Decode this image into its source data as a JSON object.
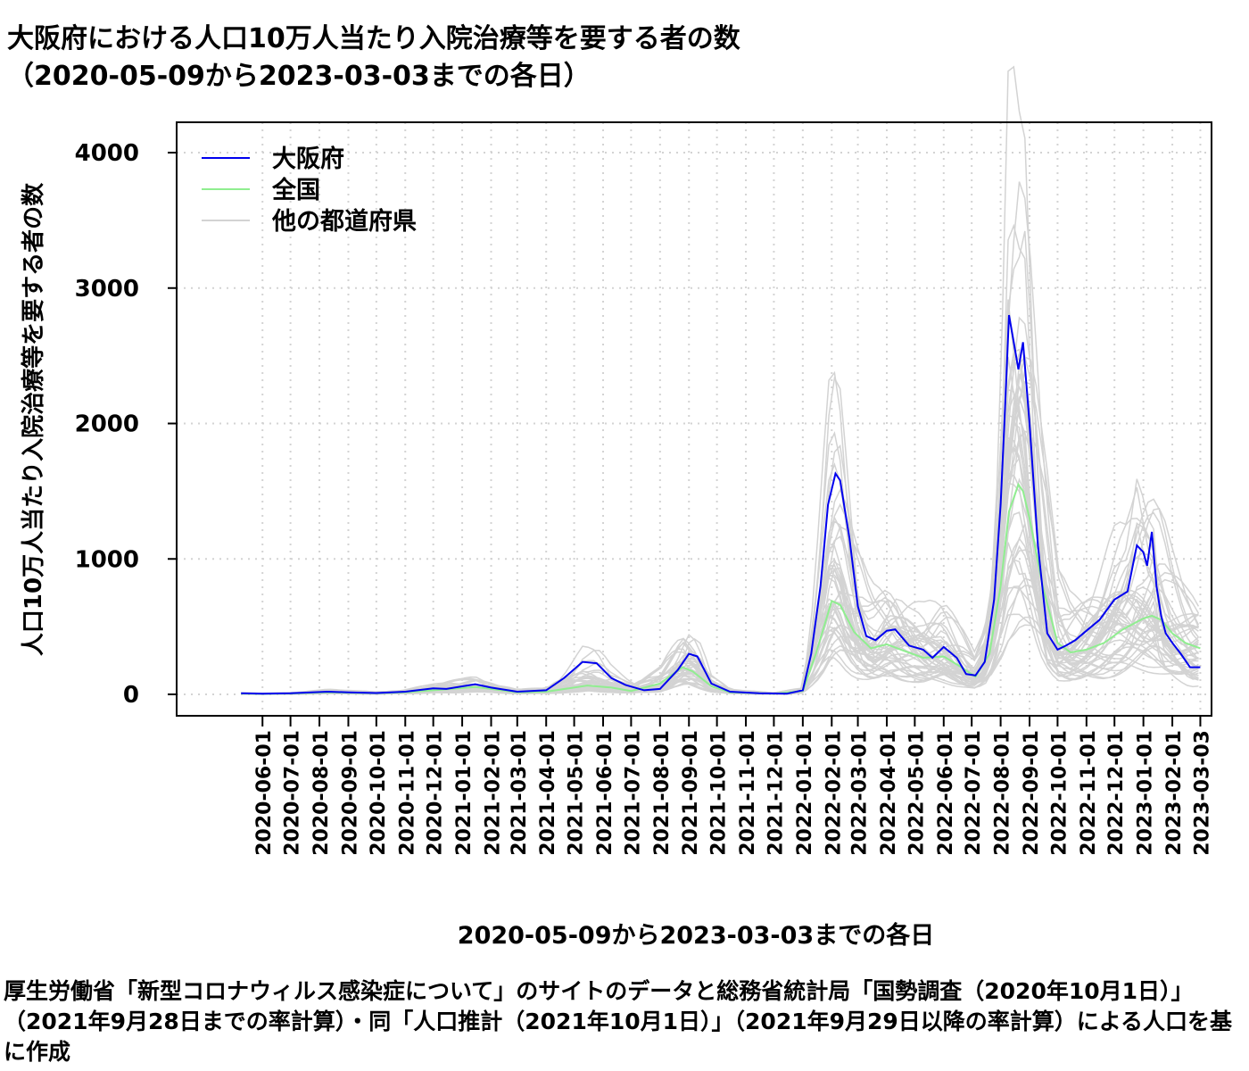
{
  "title_line1": "大阪府における人口10万人当たり入院治療等を要する者の数",
  "title_line2": "（2020-05-09から2023-03-03までの各日）",
  "caption": "厚生労働省「新型コロナウィルス感染症について」のサイトのデータと総務省統計局「国勢調査（2020年10月1日）」（2021年9月28日までの率計算）・同「人口推計（2021年10月1日）」（2021年9月29日以降の率計算）による人口を基に作成",
  "chart_data": {
    "type": "line",
    "xlabel": "2020-05-09から2023-03-03までの各日",
    "ylabel": "人口10万人当たり入院治療等を要する者の数",
    "xlim": [
      "2020-05-09",
      "2023-03-03"
    ],
    "ylim": [
      0,
      4100
    ],
    "y_ticks": [
      0,
      1000,
      2000,
      3000,
      4000
    ],
    "x_ticks": [
      "2020-06-01",
      "2020-07-01",
      "2020-08-01",
      "2020-09-01",
      "2020-10-01",
      "2020-11-01",
      "2020-12-01",
      "2021-01-01",
      "2021-02-01",
      "2021-03-01",
      "2021-04-01",
      "2021-05-01",
      "2021-06-01",
      "2021-07-01",
      "2021-08-01",
      "2021-09-01",
      "2021-10-01",
      "2021-11-01",
      "2021-12-01",
      "2022-01-01",
      "2022-02-01",
      "2022-03-01",
      "2022-04-01",
      "2022-05-01",
      "2022-06-01",
      "2022-07-01",
      "2022-08-01",
      "2022-09-01",
      "2022-10-01",
      "2022-11-01",
      "2022-12-01",
      "2023-01-01",
      "2023-02-01",
      "2023-03-03"
    ],
    "grid": true,
    "legend_position": "top-left",
    "colors": {
      "osaka": "#0000ee",
      "national": "#90ee90",
      "others": "#d3d3d3"
    },
    "series": [
      {
        "name": "大阪府",
        "color": "#0000ee",
        "x": [
          "2020-05-09",
          "2020-06-01",
          "2020-07-01",
          "2020-08-10",
          "2020-09-01",
          "2020-10-01",
          "2020-11-01",
          "2020-12-01",
          "2020-12-15",
          "2021-01-15",
          "2021-02-01",
          "2021-03-01",
          "2021-04-01",
          "2021-04-20",
          "2021-05-10",
          "2021-05-25",
          "2021-06-10",
          "2021-06-25",
          "2021-07-15",
          "2021-08-01",
          "2021-08-20",
          "2021-09-01",
          "2021-09-10",
          "2021-09-25",
          "2021-10-15",
          "2021-11-15",
          "2021-12-15",
          "2022-01-01",
          "2022-01-10",
          "2022-01-20",
          "2022-01-28",
          "2022-02-05",
          "2022-02-10",
          "2022-02-20",
          "2022-03-01",
          "2022-03-10",
          "2022-03-20",
          "2022-04-01",
          "2022-04-10",
          "2022-04-25",
          "2022-05-10",
          "2022-05-20",
          "2022-06-01",
          "2022-06-15",
          "2022-06-25",
          "2022-07-05",
          "2022-07-15",
          "2022-07-25",
          "2022-08-01",
          "2022-08-05",
          "2022-08-10",
          "2022-08-15",
          "2022-08-20",
          "2022-08-25",
          "2022-09-01",
          "2022-09-10",
          "2022-09-20",
          "2022-10-01",
          "2022-10-10",
          "2022-10-20",
          "2022-11-01",
          "2022-11-15",
          "2022-12-01",
          "2022-12-15",
          "2022-12-25",
          "2023-01-01",
          "2023-01-05",
          "2023-01-10",
          "2023-01-15",
          "2023-01-20",
          "2023-01-25",
          "2023-02-01",
          "2023-02-10",
          "2023-02-20",
          "2023-03-03"
        ],
        "y": [
          8,
          5,
          8,
          20,
          15,
          10,
          20,
          45,
          40,
          75,
          50,
          20,
          30,
          120,
          240,
          230,
          120,
          70,
          30,
          40,
          180,
          300,
          280,
          80,
          20,
          8,
          5,
          30,
          300,
          800,
          1400,
          1630,
          1580,
          1150,
          650,
          430,
          400,
          470,
          480,
          360,
          330,
          270,
          350,
          270,
          150,
          140,
          240,
          700,
          1400,
          2000,
          2800,
          2600,
          2400,
          2600,
          2000,
          1100,
          450,
          330,
          360,
          400,
          470,
          550,
          700,
          760,
          1100,
          1050,
          950,
          1200,
          800,
          580,
          450,
          380,
          300,
          200,
          200
        ]
      },
      {
        "name": "全国",
        "color": "#90ee90",
        "x": [
          "2020-05-09",
          "2020-06-01",
          "2020-07-01",
          "2020-08-10",
          "2020-09-01",
          "2020-10-01",
          "2020-11-01",
          "2020-12-01",
          "2021-01-15",
          "2021-02-01",
          "2021-03-01",
          "2021-04-01",
          "2021-05-15",
          "2021-06-10",
          "2021-07-01",
          "2021-08-01",
          "2021-08-25",
          "2021-09-05",
          "2021-09-25",
          "2021-10-15",
          "2021-12-01",
          "2022-01-01",
          "2022-01-15",
          "2022-02-01",
          "2022-02-10",
          "2022-02-25",
          "2022-03-15",
          "2022-04-01",
          "2022-04-20",
          "2022-05-10",
          "2022-06-01",
          "2022-06-20",
          "2022-07-05",
          "2022-07-20",
          "2022-08-01",
          "2022-08-10",
          "2022-08-20",
          "2022-08-25",
          "2022-09-01",
          "2022-09-15",
          "2022-10-01",
          "2022-10-15",
          "2022-11-01",
          "2022-11-20",
          "2022-12-10",
          "2023-01-01",
          "2023-01-10",
          "2023-01-20",
          "2023-02-01",
          "2023-02-15",
          "2023-03-03"
        ],
        "y": [
          5,
          3,
          6,
          15,
          12,
          8,
          15,
          30,
          55,
          40,
          15,
          20,
          65,
          50,
          25,
          80,
          200,
          170,
          60,
          15,
          5,
          25,
          300,
          690,
          660,
          460,
          340,
          370,
          320,
          270,
          280,
          200,
          130,
          300,
          800,
          1350,
          1550,
          1500,
          1300,
          800,
          380,
          310,
          330,
          380,
          480,
          560,
          580,
          550,
          450,
          380,
          340
        ]
      }
    ],
    "others_series_name": "他の都道府県"
  }
}
